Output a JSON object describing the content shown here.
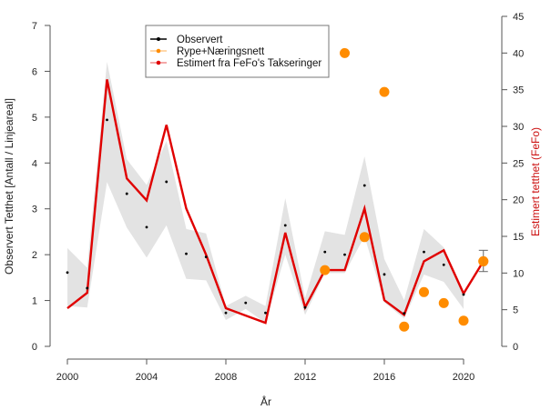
{
  "chart_data": {
    "type": "line",
    "title": "",
    "xlabel": "År",
    "ylabel_left": "Observert Tetthet [Antall / Linjeareal]",
    "ylabel_right": "Estimert tetthet (FeFo)",
    "xlim": [
      2000,
      2021
    ],
    "ylim_left": [
      0,
      7
    ],
    "ylim_right": [
      0,
      45
    ],
    "x_ticks": [
      2000,
      2004,
      2008,
      2012,
      2016,
      2020
    ],
    "y_ticks_left": [
      0,
      1,
      2,
      3,
      4,
      5,
      6,
      7
    ],
    "y_ticks_right": [
      0,
      5,
      10,
      15,
      20,
      25,
      30,
      35,
      40,
      45
    ],
    "grid": false,
    "legend_position": "top-center",
    "colors": {
      "observed": "#000000",
      "rype": "#ff8c00",
      "estimated": "#e00000",
      "band": "#e3e3e3",
      "axis": "#555555",
      "right_label": "#cc1111"
    },
    "legend": [
      {
        "label": "Observert",
        "color": "#000000"
      },
      {
        "label": "Rype+Næringsnett",
        "color": "#ff8c00"
      },
      {
        "label": "Estimert fra FeFo's Takseringer",
        "color": "#e00000"
      }
    ],
    "series": [
      {
        "name": "Observert",
        "axis": "left",
        "kind": "points",
        "x": [
          2000,
          2001,
          2002,
          2003,
          2004,
          2005,
          2006,
          2007,
          2008,
          2009,
          2010,
          2011,
          2012,
          2013,
          2014,
          2015,
          2016,
          2017,
          2018,
          2019,
          2020
        ],
        "y": [
          1.61,
          1.27,
          4.94,
          3.33,
          2.6,
          3.59,
          2.02,
          1.95,
          0.73,
          0.95,
          0.73,
          2.64,
          0.85,
          2.06,
          2.0,
          3.51,
          1.57,
          0.72,
          2.06,
          1.78,
          1.13
        ]
      },
      {
        "name": "Rype+Næringsnett",
        "axis": "right",
        "kind": "points",
        "x": [
          2013,
          2014,
          2015,
          2016,
          2017,
          2018,
          2019,
          2020,
          2021
        ],
        "y": [
          10.4,
          40.0,
          14.9,
          34.7,
          2.7,
          7.4,
          5.9,
          3.5,
          11.6
        ]
      },
      {
        "name": "Estimert fra FeFo's Takseringer",
        "axis": "right",
        "kind": "line",
        "x": [
          2000,
          2001,
          2002,
          2003,
          2004,
          2005,
          2006,
          2007,
          2008,
          2009,
          2010,
          2011,
          2012,
          2013,
          2014,
          2015,
          2016,
          2017,
          2018,
          2019,
          2020,
          2021
        ],
        "y": [
          5.2,
          7.3,
          36.4,
          22.9,
          19.9,
          30.2,
          18.8,
          12.5,
          5.2,
          4.2,
          3.2,
          15.5,
          5.3,
          10.4,
          10.4,
          18.8,
          6.3,
          4.3,
          11.6,
          13.1,
          7.2,
          11.6
        ]
      }
    ],
    "band": {
      "name": "Estimert konfidensintervall",
      "axis": "right",
      "x": [
        2000,
        2001,
        2002,
        2003,
        2004,
        2005,
        2006,
        2007,
        2008,
        2009,
        2010,
        2011,
        2012,
        2013,
        2014,
        2015,
        2016,
        2017,
        2018,
        2019,
        2020
      ],
      "upper": [
        13.4,
        10.7,
        38.8,
        25.5,
        22.0,
        28.0,
        16.0,
        15.4,
        5.5,
        6.9,
        5.5,
        20.2,
        6.6,
        15.7,
        15.2,
        25.9,
        11.9,
        6.3,
        16.0,
        13.5,
        6.9
      ],
      "lower": [
        5.5,
        5.3,
        22.4,
        16.2,
        12.1,
        16.5,
        9.2,
        9.0,
        3.6,
        5.1,
        3.2,
        12.5,
        4.3,
        10.0,
        10.0,
        15.0,
        6.0,
        3.8,
        9.8,
        8.8,
        5.1
      ]
    },
    "error_bar": {
      "x": 2021,
      "axis": "right",
      "low": 10.2,
      "high": 13.1
    }
  }
}
